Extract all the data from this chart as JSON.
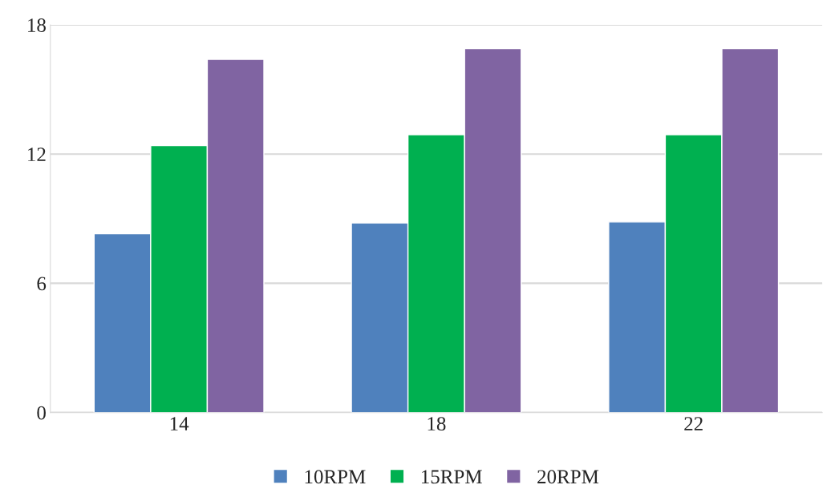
{
  "chart_data": {
    "type": "bar",
    "categories": [
      "14",
      "18",
      "22"
    ],
    "series": [
      {
        "name": "10RPM",
        "color": "#4f81bd",
        "values": [
          8.3,
          8.8,
          8.85
        ]
      },
      {
        "name": "15RPM",
        "color": "#00b050",
        "values": [
          12.4,
          12.9,
          12.9
        ]
      },
      {
        "name": "20RPM",
        "color": "#8064a2",
        "values": [
          16.4,
          16.9,
          16.9
        ]
      }
    ],
    "ylim": [
      0,
      18
    ],
    "yticks": [
      0,
      6,
      12,
      18
    ],
    "grid": "y",
    "legend": "bottom"
  }
}
